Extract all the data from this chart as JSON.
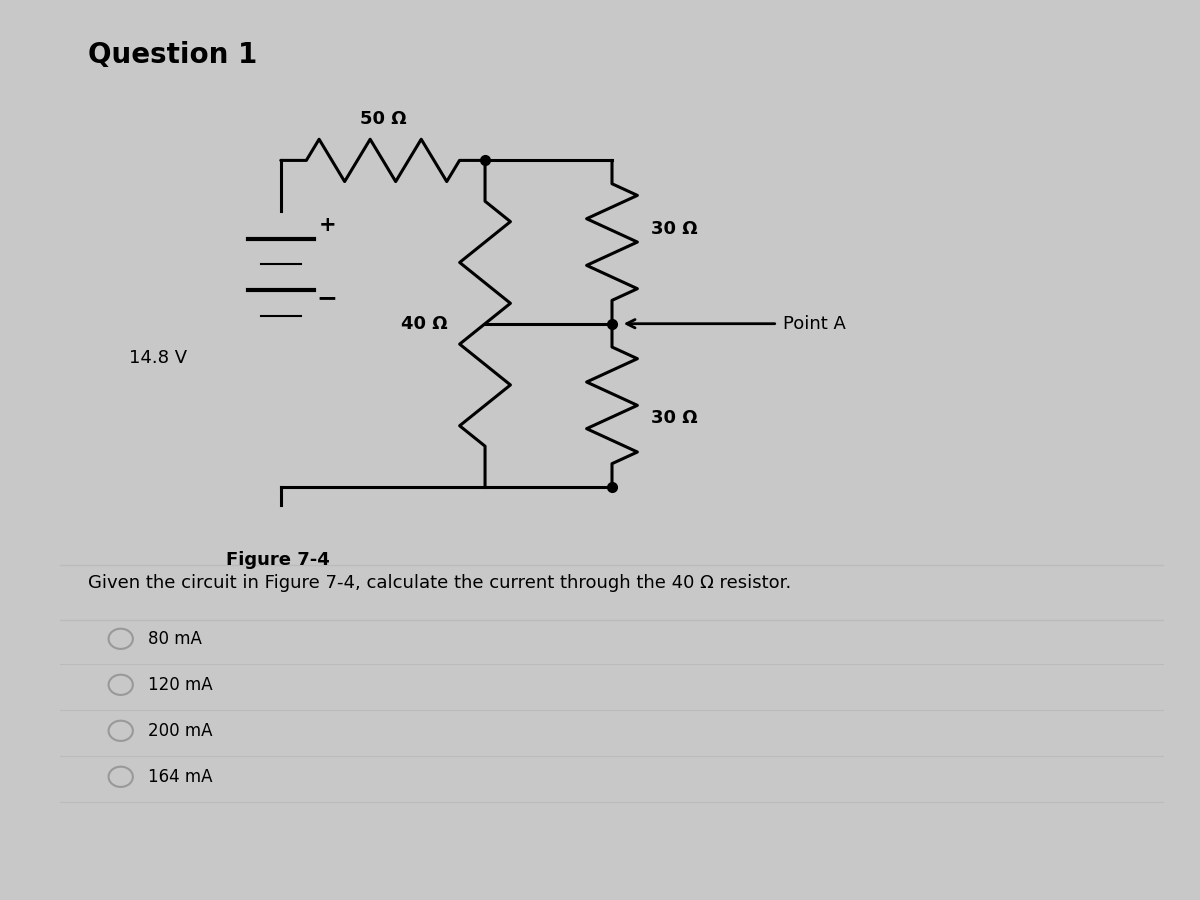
{
  "title": "Question 1",
  "figure_label": "Figure 7-4",
  "voltage": "14.8 V",
  "resistors": {
    "R1": "50 Ω",
    "R2": "40 Ω",
    "R3": "30 Ω",
    "R4": "30 Ω"
  },
  "point_label": "Point A",
  "question_text": "Given the circuit in Figure 7-4, calculate the current through the 40 Ω resistor.",
  "choices": [
    "80 mA",
    "120 mA",
    "200 mA",
    "164 mA"
  ],
  "outer_bg": "#c8c8c8",
  "panel_bg": "#e8e8e8",
  "circuit_bg": "#f0f0f0",
  "line_color": "#000000",
  "text_color": "#000000",
  "separator_color": "#bbbbbb",
  "radio_color": "#999999"
}
